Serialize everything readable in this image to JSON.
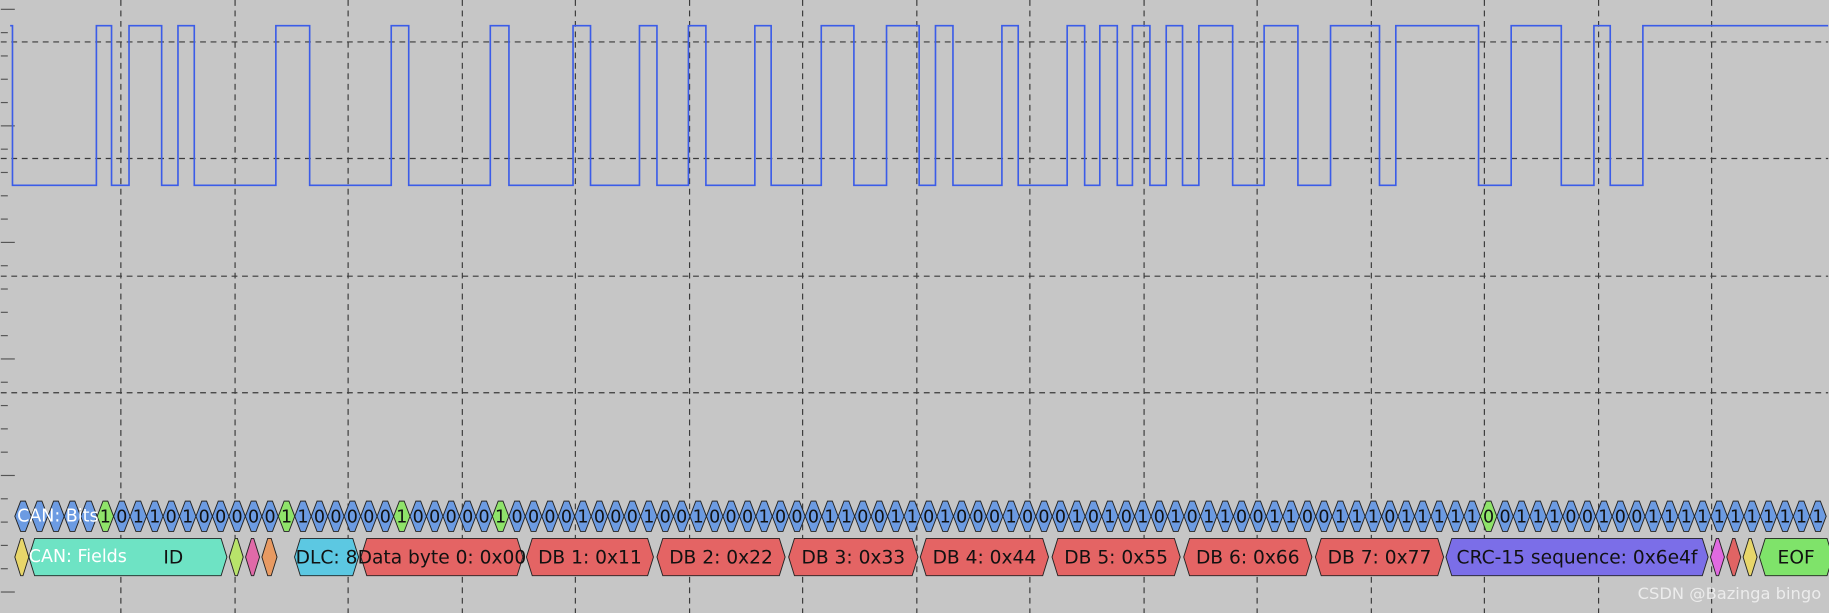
{
  "traces": {
    "bits_label": "CAN: Bits",
    "fields_label": "CAN: Fields"
  },
  "bits": [
    null,
    null,
    null,
    null,
    null,
    "1",
    "0",
    "1",
    "1",
    "0",
    "1",
    "0",
    "0",
    "0",
    "0",
    "0",
    "1",
    "1",
    "0",
    "0",
    "0",
    "0",
    "0",
    "1",
    "0",
    "0",
    "0",
    "0",
    "0",
    "1",
    "0",
    "0",
    "0",
    "0",
    "1",
    "0",
    "0",
    "0",
    "1",
    "0",
    "0",
    "1",
    "0",
    "0",
    "0",
    "1",
    "0",
    "0",
    "0",
    "1",
    "1",
    "0",
    "0",
    "1",
    "1",
    "0",
    "1",
    "0",
    "0",
    "0",
    "1",
    "0",
    "0",
    "0",
    "1",
    "0",
    "1",
    "0",
    "1",
    "0",
    "1",
    "0",
    "1",
    "1",
    "0",
    "0",
    "1",
    "1",
    "0",
    "0",
    "1",
    "1",
    "1",
    "0",
    "1",
    "1",
    "1",
    "1",
    "1",
    "0",
    "0",
    "1",
    "1",
    "1",
    "0",
    "0",
    "1",
    "0",
    "0",
    "1",
    "1",
    "1",
    "1",
    "1",
    "1",
    "1",
    "1",
    "1",
    "1",
    "1"
  ],
  "stuff_bits": [
    5,
    16,
    23,
    29,
    89
  ],
  "fields": [
    {
      "label": "ID",
      "color": "#6ee3c4"
    },
    {
      "label": "DLC: 8",
      "color": "#5cc8e2"
    },
    {
      "label": "Data byte 0: 0x00",
      "color": "#e46464"
    },
    {
      "label": "DB 1: 0x11",
      "color": "#e46464"
    },
    {
      "label": "DB 2: 0x22",
      "color": "#e46464"
    },
    {
      "label": "DB 3: 0x33",
      "color": "#e46464"
    },
    {
      "label": "DB 4: 0x44",
      "color": "#e46464"
    },
    {
      "label": "DB 5: 0x55",
      "color": "#e46464"
    },
    {
      "label": "DB 6: 0x66",
      "color": "#e46464"
    },
    {
      "label": "DB 7: 0x77",
      "color": "#e46464"
    },
    {
      "label": "CRC-15 sequence: 0x6e4f",
      "color": "#7b6ee8"
    },
    {
      "label": "EOF",
      "color": "#7fe36a"
    }
  ],
  "watermark": "CSDN @Bazinga bingo"
}
